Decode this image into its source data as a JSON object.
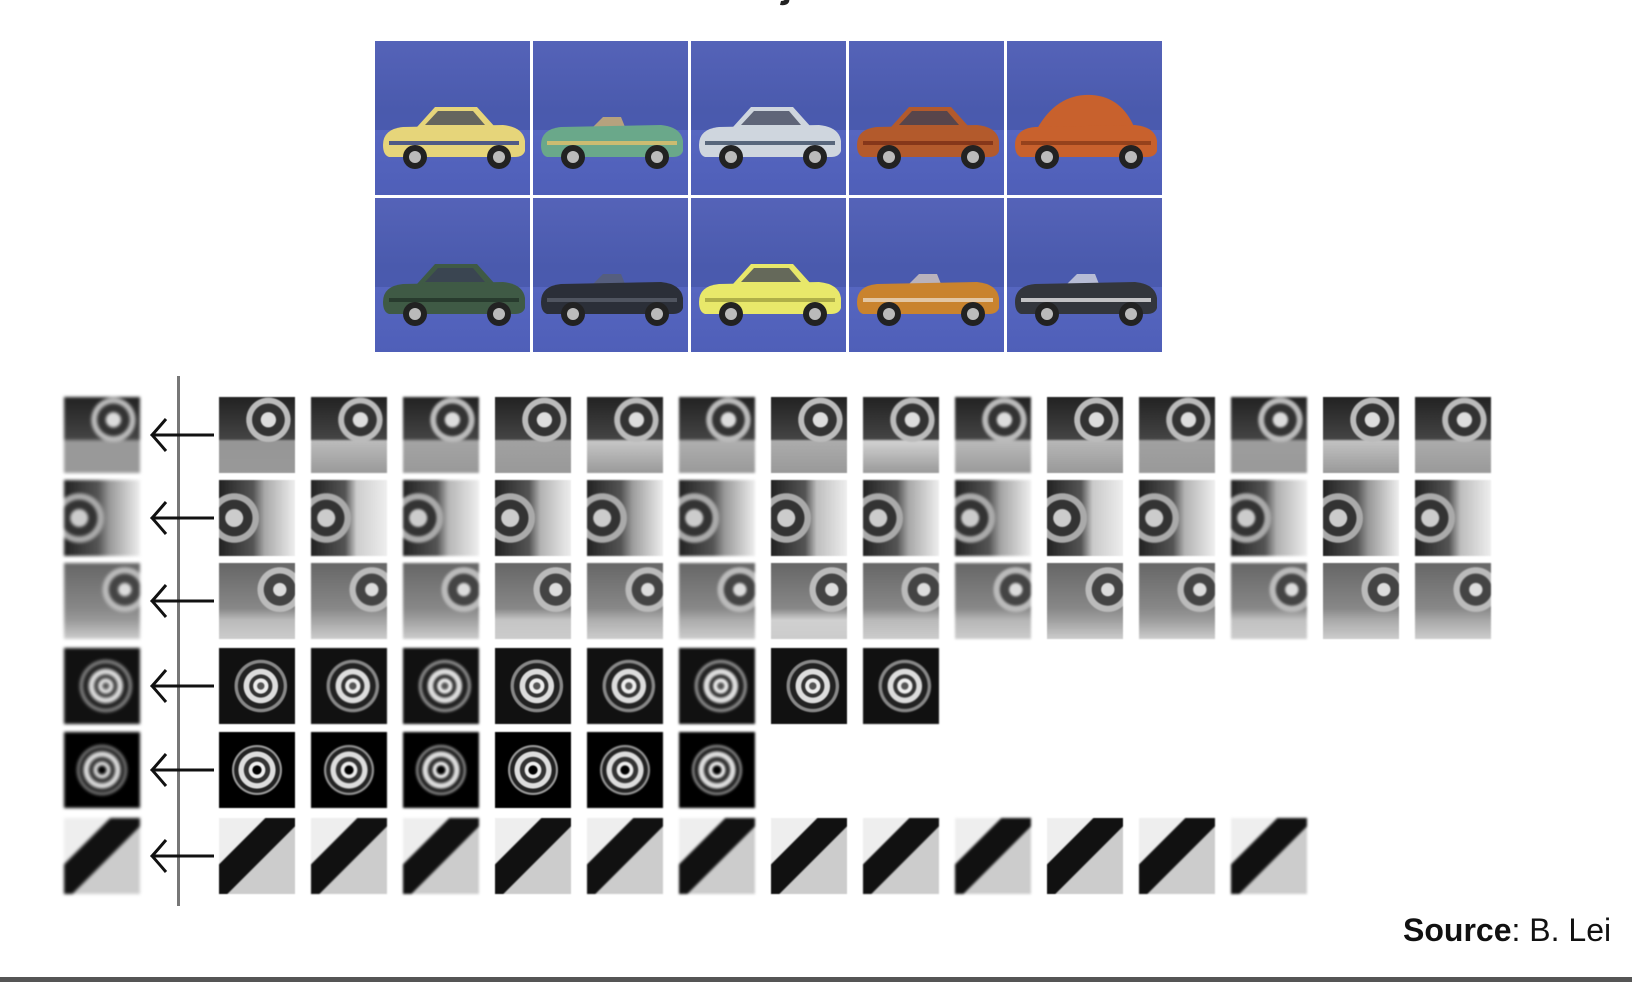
{
  "source": {
    "label": "Source",
    "text": ": B. Lei"
  },
  "car_images": [
    {
      "name": "yellow-sedan",
      "body": "#e6d57a",
      "accent": "#2b3c8a"
    },
    {
      "name": "green-roadster",
      "body": "#6aa88a",
      "accent": "#e4c06a"
    },
    {
      "name": "silver-coupe",
      "body": "#cfd6de",
      "accent": "#3a4b63"
    },
    {
      "name": "orange-sportscar",
      "body": "#b35a2c",
      "accent": "#7a2e17"
    },
    {
      "name": "orange-beetle",
      "body": "#c8612d",
      "accent": "#8a3b18"
    },
    {
      "name": "green-coupe",
      "body": "#3f5a45",
      "accent": "#233328"
    },
    {
      "name": "black-convertible",
      "body": "#2b2f38",
      "accent": "#5a5f6a"
    },
    {
      "name": "yellow-supercar",
      "body": "#e8e86a",
      "accent": "#a0a040"
    },
    {
      "name": "orange-convertible",
      "body": "#c9832e",
      "accent": "#e8d7c2"
    },
    {
      "name": "black-roadster",
      "body": "#33363c",
      "accent": "#e6e6e6"
    }
  ],
  "feature_rows": [
    {
      "name": "wheel-top-arch",
      "count": 14
    },
    {
      "name": "wheel-rear-edge",
      "count": 14
    },
    {
      "name": "wheel-front-edge",
      "count": 14
    },
    {
      "name": "wheel-side",
      "count": 8
    },
    {
      "name": "wheel-center",
      "count": 6
    },
    {
      "name": "window-corner",
      "count": 12
    }
  ]
}
